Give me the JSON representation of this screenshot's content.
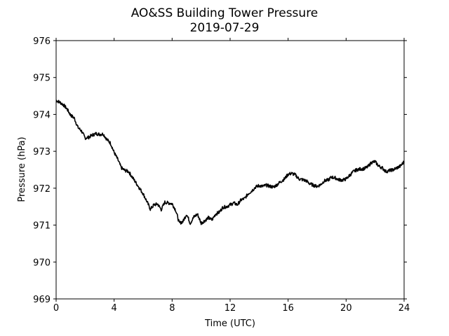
{
  "chart_data": {
    "type": "line",
    "title": "AO&SS Building Tower Pressure",
    "subtitle": "2019-07-29",
    "xlabel": "Time (UTC)",
    "ylabel": "Pressure (hPa)",
    "xlim": [
      0,
      24
    ],
    "ylim": [
      969,
      976
    ],
    "xticks": [
      0,
      4,
      8,
      12,
      16,
      20,
      24
    ],
    "yticks": [
      969,
      970,
      971,
      972,
      973,
      974,
      975,
      976
    ],
    "grid": false,
    "legend": "none",
    "series": [
      {
        "color": "#000000",
        "x": [
          0,
          0.25,
          0.5,
          0.75,
          1.0,
          1.25,
          1.5,
          1.75,
          2.0,
          2.25,
          2.5,
          2.75,
          3.0,
          3.25,
          3.5,
          3.75,
          4.0,
          4.25,
          4.5,
          4.75,
          5.0,
          5.25,
          5.5,
          5.75,
          6.0,
          6.25,
          6.5,
          6.75,
          7.0,
          7.25,
          7.5,
          7.75,
          8.0,
          8.25,
          8.5,
          8.75,
          9.0,
          9.25,
          9.5,
          9.75,
          10.0,
          10.25,
          10.5,
          10.75,
          11.0,
          11.25,
          11.5,
          11.75,
          12.0,
          12.25,
          12.5,
          12.75,
          13.0,
          13.25,
          13.5,
          13.75,
          14.0,
          14.25,
          14.5,
          14.75,
          15.0,
          15.25,
          15.5,
          15.75,
          16.0,
          16.25,
          16.5,
          16.75,
          17.0,
          17.25,
          17.5,
          17.75,
          18.0,
          18.25,
          18.5,
          18.75,
          19.0,
          19.25,
          19.5,
          19.75,
          20.0,
          20.25,
          20.5,
          20.75,
          21.0,
          21.25,
          21.5,
          21.75,
          22.0,
          22.25,
          22.5,
          22.75,
          23.0,
          23.25,
          23.5,
          23.75,
          24.0
        ],
        "y": [
          974.38,
          974.33,
          974.26,
          974.15,
          973.98,
          973.9,
          973.65,
          973.55,
          973.36,
          973.38,
          973.44,
          973.48,
          973.46,
          973.47,
          973.32,
          973.22,
          972.97,
          972.78,
          972.55,
          972.48,
          972.45,
          972.3,
          972.15,
          972.0,
          971.85,
          971.65,
          971.43,
          971.55,
          971.57,
          971.42,
          971.62,
          971.6,
          971.58,
          971.4,
          971.05,
          971.1,
          971.3,
          971.05,
          971.22,
          971.3,
          971.05,
          971.12,
          971.2,
          971.14,
          971.3,
          971.35,
          971.48,
          971.5,
          971.55,
          971.6,
          971.55,
          971.68,
          971.72,
          971.85,
          971.93,
          972.03,
          972.07,
          972.05,
          972.08,
          972.05,
          972.03,
          972.1,
          972.18,
          972.25,
          972.38,
          972.4,
          972.36,
          972.25,
          972.23,
          972.2,
          972.12,
          972.08,
          972.05,
          972.1,
          972.2,
          972.22,
          972.3,
          972.28,
          972.23,
          972.22,
          972.25,
          972.35,
          972.45,
          972.5,
          972.52,
          972.53,
          972.58,
          972.7,
          972.72,
          972.6,
          972.55,
          972.45,
          972.48,
          972.5,
          972.55,
          972.6,
          972.72
        ]
      }
    ]
  }
}
